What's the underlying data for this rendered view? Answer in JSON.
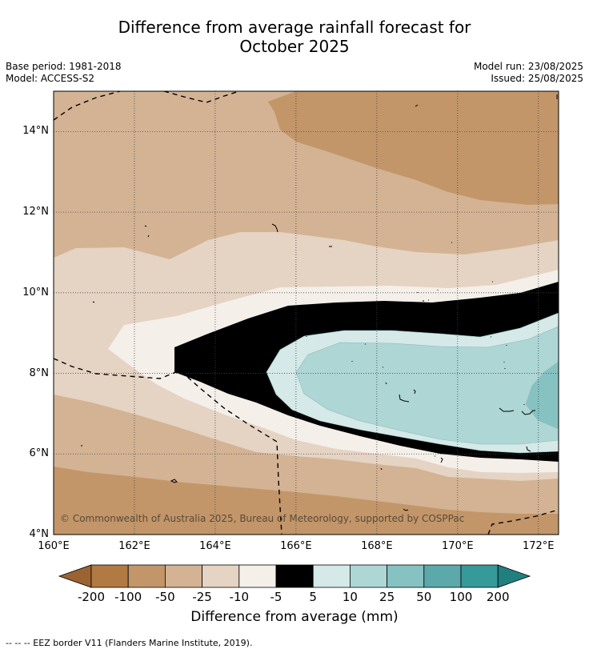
{
  "header": {
    "title_line1": "Difference from average rainfall forecast for",
    "title_line2": "October 2025",
    "base_period": "Base period: 1981-2018",
    "model": "Model: ACCESS-S2",
    "model_run": "Model run: 23/08/2025",
    "issued": "Issued: 25/08/2025"
  },
  "map": {
    "lat_labels": [
      "14°N",
      "12°N",
      "10°N",
      "8°N",
      "6°N",
      "4°N"
    ],
    "lon_labels": [
      "160°E",
      "162°E",
      "164°E",
      "166°E",
      "168°E",
      "170°E",
      "172°E"
    ],
    "copyright": "© Commonwealth of Australia 2025, Bureau of Meteorology, supported by COSPPac",
    "colors": {
      "below_minus200": "#9c6332",
      "minus200_minus100": "#b07a42",
      "minus100_minus50": "#c29669",
      "minus50_minus25": "#d3b394",
      "minus25_minus10": "#e5d3c3",
      "minus10_minus5": "#f4efe9",
      "minus5_5": "#ffffff",
      "p5_p10": "#d4e9e8",
      "p10_p25": "#add6d5",
      "p25_p50": "#86c2c2",
      "p50_p100": "#5ba9aa",
      "p100_p200": "#36999a",
      "above_p200": "#217f80"
    }
  },
  "colorbar": {
    "labels": [
      "-200",
      "-100",
      "-50",
      "-25",
      "-10",
      "-5",
      "5",
      "10",
      "25",
      "50",
      "100",
      "200"
    ],
    "title": "Difference from average (mm)"
  },
  "footnote": "--  --  -- EEZ border V11 (Flanders Marine Institute, 2019)."
}
